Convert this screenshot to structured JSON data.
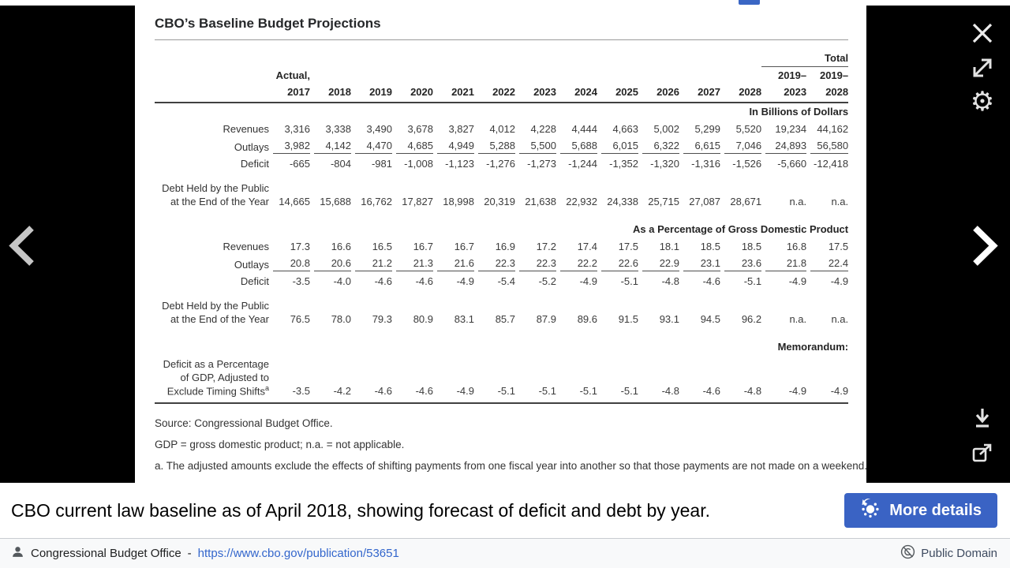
{
  "colors": {
    "accent": "#3a63c4",
    "link": "#3366cc",
    "stage": "#000000"
  },
  "icons": {
    "close": "close-icon",
    "fullscreen": "fullscreen-expand-icon",
    "settings": "gear-icon",
    "download": "download-icon",
    "share": "share-icon",
    "prev": "chevron-left-icon",
    "next": "chevron-right-icon",
    "commons_logo": "wikimedia-commons-logo",
    "author": "person-icon",
    "license": "public-domain-icon"
  },
  "image": {
    "title": "CBO’s Baseline Budget Projections",
    "table": {
      "header": {
        "total_label": "Total",
        "actual_label": "Actual,",
        "years": [
          "2017",
          "2018",
          "2019",
          "2020",
          "2021",
          "2022",
          "2023",
          "2024",
          "2025",
          "2026",
          "2027",
          "2028"
        ],
        "total_top": [
          "2019–",
          "2019–"
        ],
        "total_bottom": [
          "2023",
          "2028"
        ]
      },
      "sections": [
        {
          "title": "In Billions of Dollars",
          "rows": [
            {
              "label_lines": [
                "Revenues"
              ],
              "values": [
                "3,316",
                "3,338",
                "3,490",
                "3,678",
                "3,827",
                "4,012",
                "4,228",
                "4,444",
                "4,663",
                "5,002",
                "5,299",
                "5,520",
                "19,234",
                "44,162"
              ]
            },
            {
              "label_lines": [
                "Outlays"
              ],
              "underline": true,
              "values": [
                "3,982",
                "4,142",
                "4,470",
                "4,685",
                "4,949",
                "5,288",
                "5,500",
                "5,688",
                "6,015",
                "6,322",
                "6,615",
                "7,046",
                "24,893",
                "56,580"
              ]
            },
            {
              "label_lines": [
                "Deficit"
              ],
              "indent": true,
              "values": [
                "-665",
                "-804",
                "-981",
                "-1,008",
                "-1,123",
                "-1,276",
                "-1,273",
                "-1,244",
                "-1,352",
                "-1,320",
                "-1,316",
                "-1,526",
                "-5,660",
                "-12,418"
              ]
            },
            {
              "label_lines": [
                "Debt Held by the Public",
                "at the End of the Year"
              ],
              "gap_before": true,
              "values": [
                "14,665",
                "15,688",
                "16,762",
                "17,827",
                "18,998",
                "20,319",
                "21,638",
                "22,932",
                "24,338",
                "25,715",
                "27,087",
                "28,671",
                "n.a.",
                "n.a."
              ]
            }
          ]
        },
        {
          "title": "As a Percentage of Gross Domestic Product",
          "rows": [
            {
              "label_lines": [
                "Revenues"
              ],
              "values": [
                "17.3",
                "16.6",
                "16.5",
                "16.7",
                "16.7",
                "16.9",
                "17.2",
                "17.4",
                "17.5",
                "18.1",
                "18.5",
                "18.5",
                "16.8",
                "17.5"
              ]
            },
            {
              "label_lines": [
                "Outlays"
              ],
              "underline": true,
              "values": [
                "20.8",
                "20.6",
                "21.2",
                "21.3",
                "21.6",
                "22.3",
                "22.3",
                "22.2",
                "22.6",
                "22.9",
                "23.1",
                "23.6",
                "21.8",
                "22.4"
              ]
            },
            {
              "label_lines": [
                "Deficit"
              ],
              "indent": true,
              "values": [
                "-3.5",
                "-4.0",
                "-4.6",
                "-4.6",
                "-4.9",
                "-5.4",
                "-5.2",
                "-4.9",
                "-5.1",
                "-4.8",
                "-4.6",
                "-5.1",
                "-4.9",
                "-4.9"
              ]
            },
            {
              "label_lines": [
                "Debt Held by the Public",
                "at the End of the Year"
              ],
              "gap_before": true,
              "values": [
                "76.5",
                "78.0",
                "79.3",
                "80.9",
                "83.1",
                "85.7",
                "87.9",
                "89.6",
                "91.5",
                "93.1",
                "94.5",
                "96.2",
                "n.a.",
                "n.a."
              ]
            }
          ]
        },
        {
          "title": "Memorandum:",
          "memo": true,
          "rows": [
            {
              "label_lines": [
                "Deficit as a Percentage",
                "of GDP, Adjusted to",
                "Exclude Timing Shifts^a"
              ],
              "values": [
                "-3.5",
                "-4.2",
                "-4.6",
                "-4.6",
                "-4.9",
                "-5.1",
                "-5.1",
                "-5.1",
                "-5.1",
                "-4.8",
                "-4.6",
                "-4.8",
                "-4.9",
                "-4.9"
              ]
            }
          ]
        }
      ],
      "footnotes": [
        "Source: Congressional Budget Office.",
        "GDP = gross domestic product; n.a. = not applicable.",
        "a. The adjusted amounts exclude the effects of shifting payments from one fiscal year into another so that those payments are not made on a weekend."
      ]
    }
  },
  "caption": {
    "text": "CBO current law baseline as of April 2018, showing forecast of deficit and debt by year.",
    "button_label": "More details"
  },
  "attribution": {
    "source_name": "Congressional Budget Office",
    "separator": "-",
    "source_url": "https://www.cbo.gov/publication/53651",
    "license_label": "Public Domain"
  }
}
